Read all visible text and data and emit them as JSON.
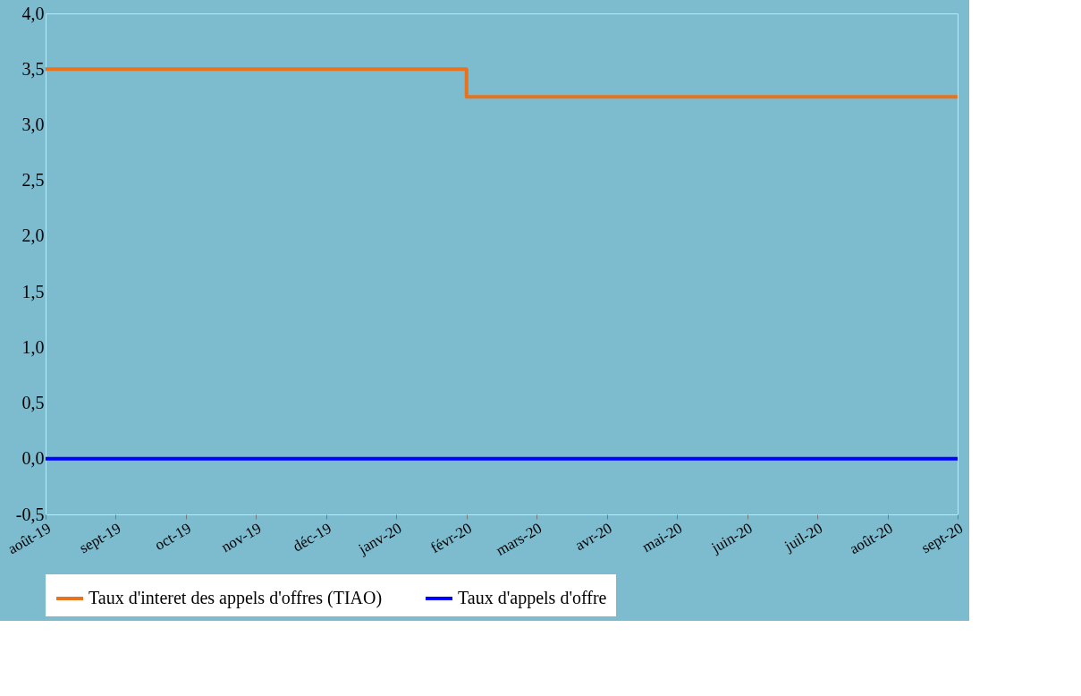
{
  "chart_data": {
    "type": "step",
    "categories": [
      "août-19",
      "sept-19",
      "oct-19",
      "nov-19",
      "déc-19",
      "janv-20",
      "févr-20",
      "mars-20",
      "avr-20",
      "mai-20",
      "juin-20",
      "juil-20",
      "août-20",
      "sept-20"
    ],
    "series": [
      {
        "name": "Taux d'interet des appels d'offres (TIAO)",
        "color": "#e8731c",
        "values": [
          3.5,
          3.5,
          3.5,
          3.5,
          3.5,
          3.5,
          3.25,
          3.25,
          3.25,
          3.25,
          3.25,
          3.25,
          3.25,
          3.25
        ]
      },
      {
        "name": "Taux d'appels d'offre",
        "color": "#0000ff",
        "type": "line",
        "values": [
          0,
          0,
          0,
          0,
          0,
          0,
          0,
          0,
          0,
          0,
          0,
          0,
          0,
          0
        ]
      }
    ],
    "ylim": [
      -0.5,
      4.0
    ],
    "yticks": [
      {
        "value": -0.5,
        "label": "-0,5"
      },
      {
        "value": 0,
        "label": "0,0"
      },
      {
        "value": 0.5,
        "label": "0,5"
      },
      {
        "value": 1,
        "label": "1,0"
      },
      {
        "value": 1.5,
        "label": "1,5"
      },
      {
        "value": 2,
        "label": "2,0"
      },
      {
        "value": 2.5,
        "label": "2,5"
      },
      {
        "value": 3,
        "label": "3,0"
      },
      {
        "value": 3.5,
        "label": "3,5"
      },
      {
        "value": 4,
        "label": "4,0"
      }
    ],
    "grid": false,
    "legend": "bottom",
    "line_style": "solid",
    "marker": "none"
  }
}
